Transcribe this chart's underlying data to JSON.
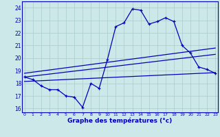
{
  "xlabel": "Graphe des températures (°c)",
  "background_color": "#cce8e8",
  "grid_color": "#aacccc",
  "line_color": "#0000bb",
  "hours": [
    0,
    1,
    2,
    3,
    4,
    5,
    6,
    7,
    8,
    9,
    10,
    11,
    12,
    13,
    14,
    15,
    16,
    17,
    18,
    19,
    20,
    21,
    22,
    23
  ],
  "temp_curve": [
    18.5,
    18.3,
    17.8,
    17.5,
    17.5,
    17.0,
    16.9,
    16.1,
    18.0,
    17.6,
    19.9,
    22.5,
    22.8,
    23.9,
    23.8,
    22.7,
    22.9,
    23.2,
    22.9,
    21.0,
    20.4,
    19.3,
    19.1,
    18.8
  ],
  "line1": [
    [
      0,
      18.8
    ],
    [
      23,
      20.8
    ]
  ],
  "line2": [
    [
      0,
      18.5
    ],
    [
      23,
      20.3
    ]
  ],
  "line3": [
    [
      0,
      18.15
    ],
    [
      23,
      18.85
    ]
  ],
  "ylim": [
    15.7,
    24.5
  ],
  "xlim": [
    -0.3,
    23.3
  ],
  "yticks": [
    16,
    17,
    18,
    19,
    20,
    21,
    22,
    23,
    24
  ],
  "xticks": [
    0,
    1,
    2,
    3,
    4,
    5,
    6,
    7,
    8,
    9,
    10,
    11,
    12,
    13,
    14,
    15,
    16,
    17,
    18,
    19,
    20,
    21,
    22,
    23
  ]
}
